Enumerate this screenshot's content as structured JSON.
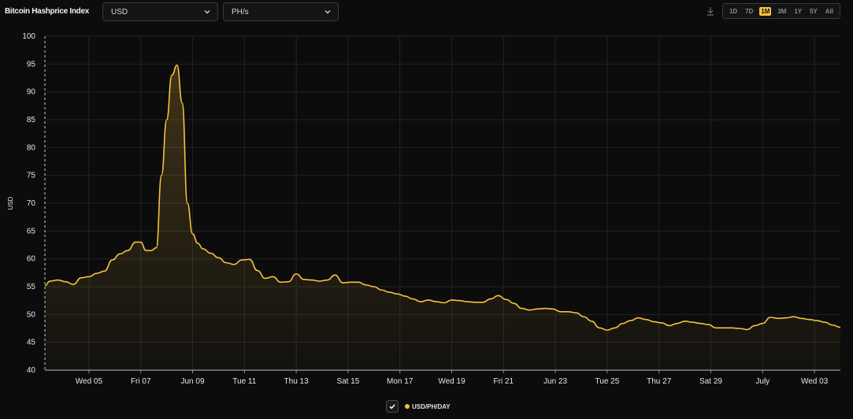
{
  "app": {
    "title": "Bitcoin Hashprice Index"
  },
  "controls": {
    "currency": "USD",
    "unit": "PH/s",
    "download_icon": "download-icon",
    "ranges": [
      "1D",
      "7D",
      "1M",
      "3M",
      "1Y",
      "5Y",
      "All"
    ],
    "active_range": "1M"
  },
  "colors": {
    "background": "#0c0c0d",
    "line": "#f5c23e",
    "grid": "#232326",
    "text": "#e6e6e6"
  },
  "legend": {
    "label": "USD/PH/DAY",
    "checked": true
  },
  "chart_data": {
    "type": "area",
    "title": "",
    "xlabel": "",
    "ylabel": "USD",
    "ylim": [
      40,
      100
    ],
    "yticks": [
      40,
      45,
      50,
      55,
      60,
      65,
      70,
      75,
      80,
      85,
      90,
      95,
      100
    ],
    "grid": true,
    "x_unit": "day index (1 = Jun 01)",
    "xlim": [
      3.3,
      34.0
    ],
    "xticks": [
      {
        "x": 5,
        "label": "Wed 05"
      },
      {
        "x": 7,
        "label": "Fri 07"
      },
      {
        "x": 9,
        "label": "Jun 09"
      },
      {
        "x": 11,
        "label": "Tue 11"
      },
      {
        "x": 13,
        "label": "Thu 13"
      },
      {
        "x": 15,
        "label": "Sat 15"
      },
      {
        "x": 17,
        "label": "Mon 17"
      },
      {
        "x": 19,
        "label": "Wed 19"
      },
      {
        "x": 21,
        "label": "Fri 21"
      },
      {
        "x": 23,
        "label": "Jun 23"
      },
      {
        "x": 25,
        "label": "Tue 25"
      },
      {
        "x": 27,
        "label": "Thu 27"
      },
      {
        "x": 29,
        "label": "Sat 29"
      },
      {
        "x": 31,
        "label": "July"
      },
      {
        "x": 33,
        "label": "Wed 03"
      }
    ],
    "series": [
      {
        "name": "USD/PH/DAY",
        "x": [
          3.3,
          3.5,
          3.8,
          4.1,
          4.4,
          4.7,
          5.0,
          5.3,
          5.6,
          5.9,
          6.2,
          6.5,
          6.8,
          7.0,
          7.2,
          7.4,
          7.6,
          7.8,
          8.0,
          8.2,
          8.4,
          8.6,
          8.8,
          9.0,
          9.2,
          9.4,
          9.7,
          10.0,
          10.3,
          10.6,
          10.9,
          11.2,
          11.5,
          11.8,
          12.1,
          12.4,
          12.7,
          13.0,
          13.3,
          13.6,
          13.9,
          14.2,
          14.5,
          14.8,
          15.1,
          15.4,
          15.7,
          16.0,
          16.3,
          16.6,
          16.9,
          17.2,
          17.5,
          17.8,
          18.1,
          18.4,
          18.7,
          19.0,
          19.3,
          19.6,
          19.9,
          20.2,
          20.5,
          20.8,
          21.1,
          21.4,
          21.7,
          22.0,
          22.3,
          22.6,
          22.9,
          23.2,
          23.5,
          23.8,
          24.1,
          24.4,
          24.7,
          25.0,
          25.3,
          25.6,
          25.9,
          26.2,
          26.5,
          26.8,
          27.1,
          27.4,
          27.7,
          28.0,
          28.3,
          28.6,
          28.9,
          29.2,
          29.5,
          29.8,
          30.1,
          30.4,
          30.7,
          31.0,
          31.3,
          31.6,
          31.9,
          32.2,
          32.5,
          32.8,
          33.1,
          33.4,
          33.7,
          34.0
        ],
        "values": [
          55.2,
          56.0,
          56.2,
          55.9,
          55.4,
          56.6,
          56.8,
          57.4,
          57.8,
          59.8,
          60.9,
          61.5,
          63.0,
          63.0,
          61.5,
          61.5,
          62.0,
          75.0,
          85.0,
          93.0,
          94.8,
          88.0,
          70.0,
          64.5,
          62.8,
          61.8,
          61.0,
          60.2,
          59.3,
          59.0,
          59.8,
          59.9,
          57.9,
          56.5,
          56.8,
          55.8,
          55.9,
          57.3,
          56.3,
          56.2,
          56.0,
          56.2,
          57.1,
          55.7,
          55.8,
          55.8,
          55.3,
          55.0,
          54.4,
          54.0,
          53.7,
          53.3,
          52.8,
          52.3,
          52.6,
          52.3,
          52.1,
          52.6,
          52.5,
          52.3,
          52.2,
          52.2,
          52.8,
          53.4,
          52.7,
          52.0,
          51.1,
          50.8,
          51.0,
          51.1,
          51.0,
          50.5,
          50.5,
          50.3,
          49.6,
          48.8,
          47.6,
          47.2,
          47.6,
          48.4,
          48.9,
          49.4,
          49.1,
          48.7,
          48.5,
          48.0,
          48.4,
          48.8,
          48.6,
          48.4,
          48.2,
          47.6,
          47.6,
          47.6,
          47.5,
          47.3,
          48.0,
          48.4,
          49.5,
          49.3,
          49.4,
          49.6,
          49.3,
          49.1,
          48.9,
          48.6,
          48.1,
          47.7
        ]
      }
    ]
  }
}
